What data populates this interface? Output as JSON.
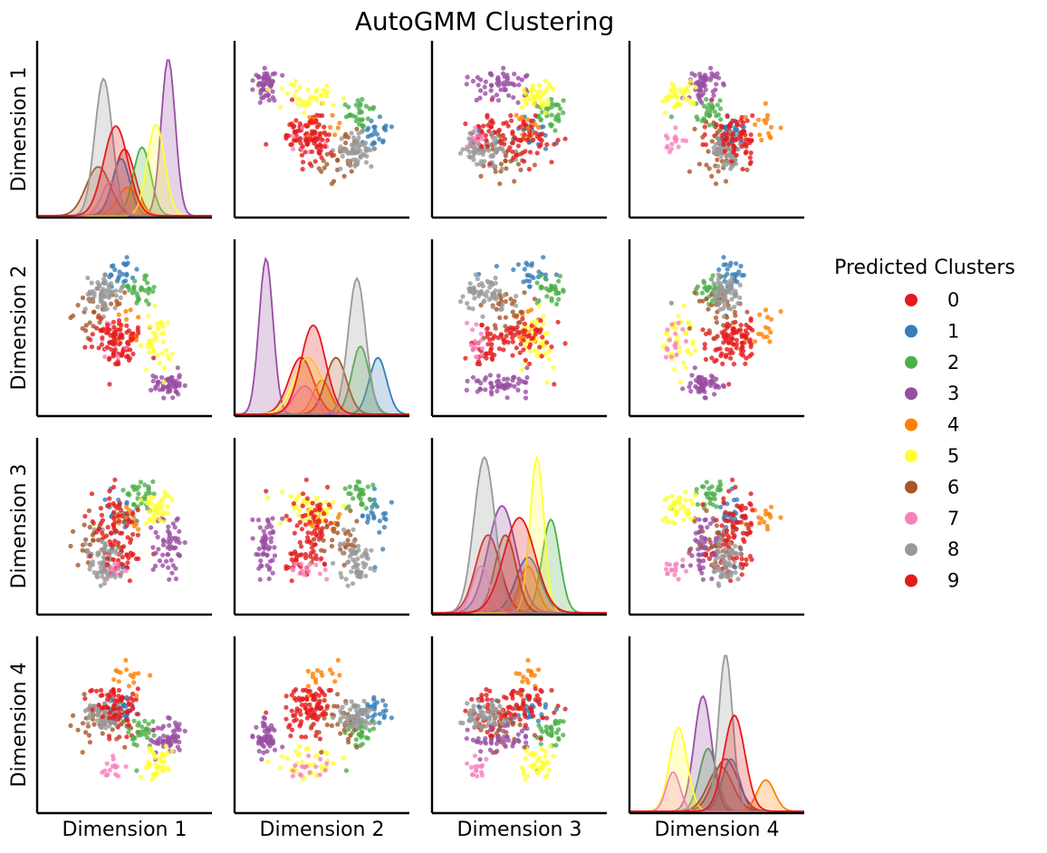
{
  "chart_data": {
    "type": "pairplot",
    "title": "AutoGMM Clustering",
    "variables": [
      "Dimension 1",
      "Dimension 2",
      "Dimension 3",
      "Dimension 4"
    ],
    "diagonal": "kde",
    "off_diagonal": "scatter",
    "ticks_shown": false,
    "legend": {
      "title": "Predicted Clusters",
      "placement": "right",
      "labels": [
        "0",
        "1",
        "2",
        "3",
        "4",
        "5",
        "6",
        "7",
        "8",
        "9"
      ]
    },
    "palette": [
      "#e41a1c",
      "#377eb8",
      "#4daf4a",
      "#984ea3",
      "#ff7f00",
      "#ffff33",
      "#a65628",
      "#f781bf",
      "#999999",
      "#e41a1c"
    ],
    "clusters": [
      {
        "label": "0",
        "mean": [
          0.5,
          0.38,
          0.32,
          0.55
        ],
        "sd": [
          0.06,
          0.07,
          0.07,
          0.07
        ],
        "n": 35
      },
      {
        "label": "1",
        "mean": [
          0.48,
          0.82,
          0.55,
          0.58
        ],
        "sd": [
          0.05,
          0.05,
          0.07,
          0.05
        ],
        "n": 25
      },
      {
        "label": "2",
        "mean": [
          0.6,
          0.72,
          0.68,
          0.45
        ],
        "sd": [
          0.05,
          0.05,
          0.05,
          0.05
        ],
        "n": 30
      },
      {
        "label": "3",
        "mean": [
          0.75,
          0.18,
          0.4,
          0.42
        ],
        "sd": [
          0.04,
          0.04,
          0.08,
          0.05
        ],
        "n": 55
      },
      {
        "label": "4",
        "mean": [
          0.52,
          0.5,
          0.55,
          0.78
        ],
        "sd": [
          0.06,
          0.05,
          0.05,
          0.05
        ],
        "n": 15
      },
      {
        "label": "5",
        "mean": [
          0.68,
          0.42,
          0.6,
          0.28
        ],
        "sd": [
          0.05,
          0.08,
          0.04,
          0.05
        ],
        "n": 40
      },
      {
        "label": "6",
        "mean": [
          0.35,
          0.58,
          0.42,
          0.52
        ],
        "sd": [
          0.07,
          0.06,
          0.06,
          0.07
        ],
        "n": 30
      },
      {
        "label": "7",
        "mean": [
          0.42,
          0.4,
          0.28,
          0.25
        ],
        "sd": [
          0.05,
          0.06,
          0.05,
          0.04
        ],
        "n": 15
      },
      {
        "label": "8",
        "mean": [
          0.38,
          0.7,
          0.3,
          0.55
        ],
        "sd": [
          0.05,
          0.05,
          0.06,
          0.04
        ],
        "n": 60
      },
      {
        "label": "9",
        "mean": [
          0.45,
          0.45,
          0.5,
          0.6
        ],
        "sd": [
          0.07,
          0.07,
          0.09,
          0.06
        ],
        "n": 55
      }
    ]
  }
}
